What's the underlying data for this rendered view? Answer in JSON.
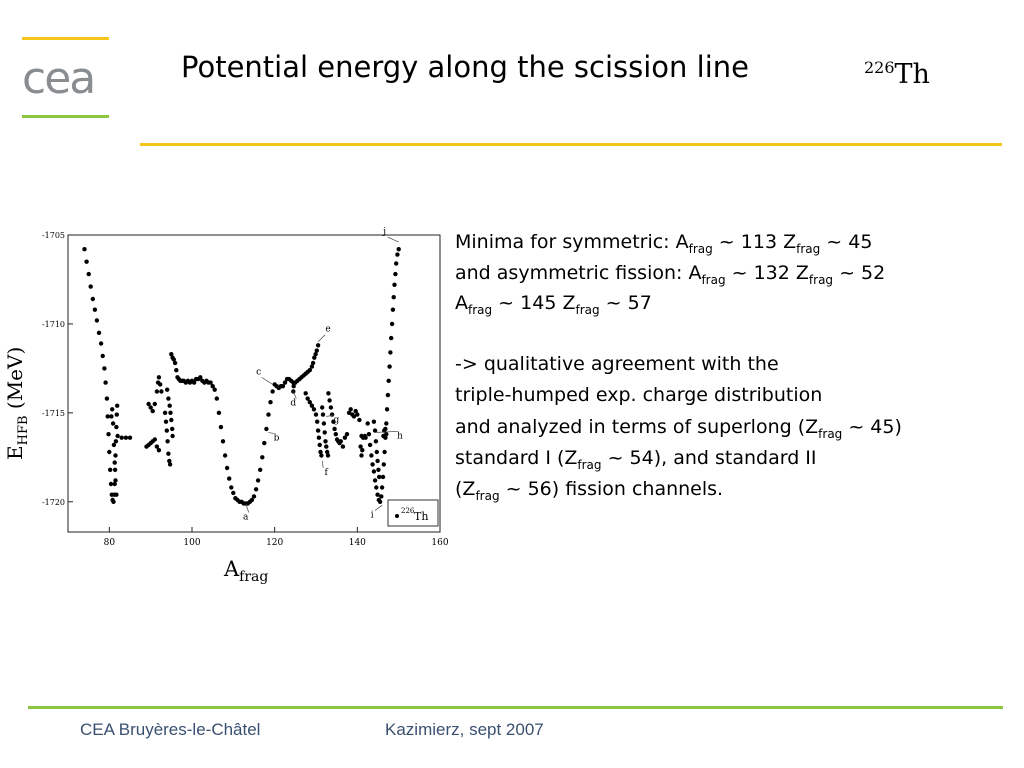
{
  "header": {
    "title": "Potential energy along the scission line",
    "nucleus_mass": "226",
    "nucleus_symbol": "Th"
  },
  "logo": {
    "text": "cea"
  },
  "footer": {
    "left": "CEA Bruyères-le-Châtel",
    "right": "Kazimierz, sept 2007"
  },
  "text_block": {
    "l1": {
      "a": "Minima for symmetric: A",
      "s1": "frag",
      "b": " ~ 113 Z",
      "s2": "frag",
      "c": " ~ 45"
    },
    "l2": {
      "a": "and asymmetric fission: A",
      "s1": "frag",
      "b": " ~ 132 Z",
      "s2": "frag",
      "c": " ~ 52"
    },
    "l3": {
      "a": "A",
      "s1": "frag",
      "b": " ~ 145 Z",
      "s2": "frag",
      "c": " ~ 57"
    },
    "l4": "-> qualitative agreement with the",
    "l5": "triple-humped exp. charge distribution",
    "l6": {
      "a": "and analyzed in terms of superlong (Z",
      "s1": "frag",
      "b": " ~ 45)"
    },
    "l7": {
      "a": "standard I (Z",
      "s1": "frag",
      "b": " ~ 54), and standard II"
    },
    "l8": {
      "a": "(Z",
      "s1": "frag",
      "b": " ~ 56) fission channels."
    }
  },
  "chart_data": {
    "type": "scatter",
    "ylabel": {
      "main": "E",
      "sub": "HFB",
      "unit": " (MeV)"
    },
    "xlabel": {
      "main": "A",
      "sub": "frag"
    },
    "xlim": [
      70,
      160
    ],
    "ylim": [
      -1721.7,
      -1705
    ],
    "xticks": [
      80,
      100,
      120,
      140,
      160
    ],
    "yticks": [
      -1705,
      -1710,
      -1715,
      -1720
    ],
    "legend": {
      "mass": "226",
      "symbol": "Th",
      "position": "bottom-right"
    },
    "annotations": [
      {
        "label": "a",
        "x": 113,
        "y": -1720.1
      },
      {
        "label": "b",
        "x": 118.5,
        "y": -1716.1
      },
      {
        "label": "c",
        "x": 119.5,
        "y": -1713.4
      },
      {
        "label": "d",
        "x": 124.5,
        "y": -1713.8
      },
      {
        "label": "e",
        "x": 130.5,
        "y": -1711.0
      },
      {
        "label": "f",
        "x": 131.5,
        "y": -1717.7
      },
      {
        "label": "g",
        "x": 132.5,
        "y": -1715.2
      },
      {
        "label": "h",
        "x": 144.5,
        "y": -1716.1
      },
      {
        "label": "i",
        "x": 146,
        "y": -1720.2
      },
      {
        "label": "j",
        "x": 150,
        "y": -1705.4
      }
    ],
    "series": [
      {
        "marker": "dot",
        "points": [
          [
            74.0,
            -1705.8
          ],
          [
            74.5,
            -1706.5
          ],
          [
            75.0,
            -1707.2
          ],
          [
            75.5,
            -1707.9
          ],
          [
            76.0,
            -1708.6
          ],
          [
            76.5,
            -1709.2
          ],
          [
            77.0,
            -1709.8
          ],
          [
            77.5,
            -1710.5
          ],
          [
            78.0,
            -1711.1
          ],
          [
            78.4,
            -1711.8
          ],
          [
            78.8,
            -1712.5
          ],
          [
            79.1,
            -1713.3
          ],
          [
            79.4,
            -1714.2
          ],
          [
            79.6,
            -1715.2
          ],
          [
            79.8,
            -1716.2
          ],
          [
            80.0,
            -1717.2
          ],
          [
            80.2,
            -1718.2
          ],
          [
            80.4,
            -1719.0
          ],
          [
            80.6,
            -1719.6
          ],
          [
            80.8,
            -1719.9
          ],
          [
            81.0,
            -1720.0
          ],
          [
            81.2,
            -1719.6
          ],
          [
            81.3,
            -1719.0
          ],
          [
            81.4,
            -1718.2
          ],
          [
            81.5,
            -1717.4
          ],
          [
            81.6,
            -1716.6
          ],
          [
            81.7,
            -1715.8
          ],
          [
            81.8,
            -1715.1
          ],
          [
            81.9,
            -1714.6
          ],
          [
            82.0,
            -1716.3
          ],
          [
            83.0,
            -1716.4
          ],
          [
            84.0,
            -1716.4
          ],
          [
            85.0,
            -1716.4
          ],
          [
            80.5,
            -1715.2
          ],
          [
            80.7,
            -1714.8
          ],
          [
            80.9,
            -1715.6
          ],
          [
            81.1,
            -1716.8
          ],
          [
            81.3,
            -1717.8
          ],
          [
            81.5,
            -1718.8
          ],
          [
            81.7,
            -1719.6
          ],
          [
            89.0,
            -1716.9
          ],
          [
            89.5,
            -1716.8
          ],
          [
            90.0,
            -1716.7
          ],
          [
            90.5,
            -1716.6
          ],
          [
            91.0,
            -1716.5
          ],
          [
            91.5,
            -1716.9
          ],
          [
            92.0,
            -1717.1
          ],
          [
            89.5,
            -1714.5
          ],
          [
            90.0,
            -1714.7
          ],
          [
            90.5,
            -1714.9
          ],
          [
            91.0,
            -1714.5
          ],
          [
            91.5,
            -1713.8
          ],
          [
            91.8,
            -1713.3
          ],
          [
            92.0,
            -1713.0
          ],
          [
            92.3,
            -1713.4
          ],
          [
            92.6,
            -1713.8
          ],
          [
            93.5,
            -1715.0
          ],
          [
            93.7,
            -1715.5
          ],
          [
            93.9,
            -1716.0
          ],
          [
            94.1,
            -1716.6
          ],
          [
            94.3,
            -1717.3
          ],
          [
            94.5,
            -1717.7
          ],
          [
            94.7,
            -1717.9
          ],
          [
            94.0,
            -1713.7
          ],
          [
            94.3,
            -1714.2
          ],
          [
            94.6,
            -1714.6
          ],
          [
            94.8,
            -1715.0
          ],
          [
            95.0,
            -1715.4
          ],
          [
            95.2,
            -1715.9
          ],
          [
            95.3,
            -1716.3
          ],
          [
            95.0,
            -1711.7
          ],
          [
            95.3,
            -1711.9
          ],
          [
            95.6,
            -1712.0
          ],
          [
            95.9,
            -1712.2
          ],
          [
            96.2,
            -1712.6
          ],
          [
            96.5,
            -1713.0
          ],
          [
            96.8,
            -1713.1
          ],
          [
            97.2,
            -1713.2
          ],
          [
            97.6,
            -1713.2
          ],
          [
            98.0,
            -1713.2
          ],
          [
            98.5,
            -1713.3
          ],
          [
            99.0,
            -1713.2
          ],
          [
            99.5,
            -1713.3
          ],
          [
            100.0,
            -1713.2
          ],
          [
            100.5,
            -1713.3
          ],
          [
            101.0,
            -1713.1
          ],
          [
            101.5,
            -1713.1
          ],
          [
            102.0,
            -1713.0
          ],
          [
            102.5,
            -1713.2
          ],
          [
            103.0,
            -1713.3
          ],
          [
            103.5,
            -1713.2
          ],
          [
            104.0,
            -1713.3
          ],
          [
            104.5,
            -1713.3
          ],
          [
            105.0,
            -1713.5
          ],
          [
            105.5,
            -1713.7
          ],
          [
            106.0,
            -1714.2
          ],
          [
            106.5,
            -1715.0
          ],
          [
            107.0,
            -1715.8
          ],
          [
            107.5,
            -1716.6
          ],
          [
            108.0,
            -1717.4
          ],
          [
            108.5,
            -1718.1
          ],
          [
            109.0,
            -1718.7
          ],
          [
            109.5,
            -1719.2
          ],
          [
            110.0,
            -1719.5
          ],
          [
            110.5,
            -1719.8
          ],
          [
            111.0,
            -1719.9
          ],
          [
            111.5,
            -1720.0
          ],
          [
            112.0,
            -1720.0
          ],
          [
            112.5,
            -1720.1
          ],
          [
            113.0,
            -1720.1
          ],
          [
            113.5,
            -1720.1
          ],
          [
            114.0,
            -1720.0
          ],
          [
            114.5,
            -1719.9
          ],
          [
            115.0,
            -1719.7
          ],
          [
            115.5,
            -1719.3
          ],
          [
            116.0,
            -1718.8
          ],
          [
            116.5,
            -1718.2
          ],
          [
            117.0,
            -1717.5
          ],
          [
            117.5,
            -1716.7
          ],
          [
            118.0,
            -1715.9
          ],
          [
            118.5,
            -1715.1
          ],
          [
            119.0,
            -1714.4
          ],
          [
            119.5,
            -1713.8
          ],
          [
            120.0,
            -1713.4
          ],
          [
            120.5,
            -1713.5
          ],
          [
            121.0,
            -1713.6
          ],
          [
            121.5,
            -1713.5
          ],
          [
            122.0,
            -1713.5
          ],
          [
            122.5,
            -1713.3
          ],
          [
            123.0,
            -1713.1
          ],
          [
            123.5,
            -1713.1
          ],
          [
            124.0,
            -1713.2
          ],
          [
            124.5,
            -1713.3
          ],
          [
            125.0,
            -1713.3
          ],
          [
            125.5,
            -1713.2
          ],
          [
            126.0,
            -1713.1
          ],
          [
            126.5,
            -1713.0
          ],
          [
            127.0,
            -1712.9
          ],
          [
            127.5,
            -1712.8
          ],
          [
            128.0,
            -1712.7
          ],
          [
            128.5,
            -1712.6
          ],
          [
            129.0,
            -1712.4
          ],
          [
            129.3,
            -1712.2
          ],
          [
            129.6,
            -1711.9
          ],
          [
            129.9,
            -1711.7
          ],
          [
            130.2,
            -1711.5
          ],
          [
            130.5,
            -1711.2
          ],
          [
            124.5,
            -1713.8
          ],
          [
            124.6,
            -1713.5
          ],
          [
            127.5,
            -1713.9
          ],
          [
            128.0,
            -1714.2
          ],
          [
            128.5,
            -1714.4
          ],
          [
            129.0,
            -1714.6
          ],
          [
            129.5,
            -1714.8
          ],
          [
            130.0,
            -1715.1
          ],
          [
            130.3,
            -1715.5
          ],
          [
            130.5,
            -1716.0
          ],
          [
            130.7,
            -1716.4
          ],
          [
            130.9,
            -1716.8
          ],
          [
            131.1,
            -1717.2
          ],
          [
            131.3,
            -1717.4
          ],
          [
            131.5,
            -1714.7
          ],
          [
            131.7,
            -1715.1
          ],
          [
            131.9,
            -1715.6
          ],
          [
            132.1,
            -1716.1
          ],
          [
            132.3,
            -1716.6
          ],
          [
            132.5,
            -1716.9
          ],
          [
            132.7,
            -1717.2
          ],
          [
            132.9,
            -1717.4
          ],
          [
            133.0,
            -1713.9
          ],
          [
            133.3,
            -1714.3
          ],
          [
            133.6,
            -1714.7
          ],
          [
            133.9,
            -1715.1
          ],
          [
            134.2,
            -1715.5
          ],
          [
            134.5,
            -1715.9
          ],
          [
            134.8,
            -1716.2
          ],
          [
            135.1,
            -1716.5
          ],
          [
            135.4,
            -1716.6
          ],
          [
            135.7,
            -1716.7
          ],
          [
            136.0,
            -1716.6
          ],
          [
            136.5,
            -1716.9
          ],
          [
            137.0,
            -1716.4
          ],
          [
            137.5,
            -1716.2
          ],
          [
            138.0,
            -1715.0
          ],
          [
            138.4,
            -1714.8
          ],
          [
            138.8,
            -1715.1
          ],
          [
            139.2,
            -1715.2
          ],
          [
            139.6,
            -1714.9
          ],
          [
            140.0,
            -1715.1
          ],
          [
            140.5,
            -1715.4
          ],
          [
            141.0,
            -1716.3
          ],
          [
            141.4,
            -1716.4
          ],
          [
            141.8,
            -1716.3
          ],
          [
            142.0,
            -1716.4
          ],
          [
            140.8,
            -1716.9
          ],
          [
            141.0,
            -1717.4
          ],
          [
            141.2,
            -1717.1
          ],
          [
            142.5,
            -1715.6
          ],
          [
            142.8,
            -1716.2
          ],
          [
            143.1,
            -1716.8
          ],
          [
            143.4,
            -1717.4
          ],
          [
            143.7,
            -1717.9
          ],
          [
            144.0,
            -1718.3
          ],
          [
            144.3,
            -1718.8
          ],
          [
            144.6,
            -1719.2
          ],
          [
            144.9,
            -1719.6
          ],
          [
            145.2,
            -1719.9
          ],
          [
            145.5,
            -1720.0
          ],
          [
            145.8,
            -1719.7
          ],
          [
            146.0,
            -1719.2
          ],
          [
            146.2,
            -1718.6
          ],
          [
            146.4,
            -1717.9
          ],
          [
            146.6,
            -1717.2
          ],
          [
            146.8,
            -1716.4
          ],
          [
            147.0,
            -1715.6
          ],
          [
            147.2,
            -1714.8
          ],
          [
            147.4,
            -1714.0
          ],
          [
            147.6,
            -1713.2
          ],
          [
            147.8,
            -1712.4
          ],
          [
            148.0,
            -1711.6
          ],
          [
            148.2,
            -1710.8
          ],
          [
            148.4,
            -1710.0
          ],
          [
            148.6,
            -1709.2
          ],
          [
            148.8,
            -1708.5
          ],
          [
            149.0,
            -1707.8
          ],
          [
            149.2,
            -1707.2
          ],
          [
            149.4,
            -1706.6
          ],
          [
            149.7,
            -1706.1
          ],
          [
            150.0,
            -1705.8
          ],
          [
            144.0,
            -1715.5
          ],
          [
            144.3,
            -1716.0
          ],
          [
            144.5,
            -1716.6
          ],
          [
            144.7,
            -1717.2
          ],
          [
            144.9,
            -1717.7
          ],
          [
            145.1,
            -1718.2
          ],
          [
            145.3,
            -1718.6
          ],
          [
            146.3,
            -1716.3
          ],
          [
            146.5,
            -1716.0
          ],
          [
            146.8,
            -1715.9
          ],
          [
            147.0,
            -1716.2
          ]
        ]
      }
    ]
  }
}
